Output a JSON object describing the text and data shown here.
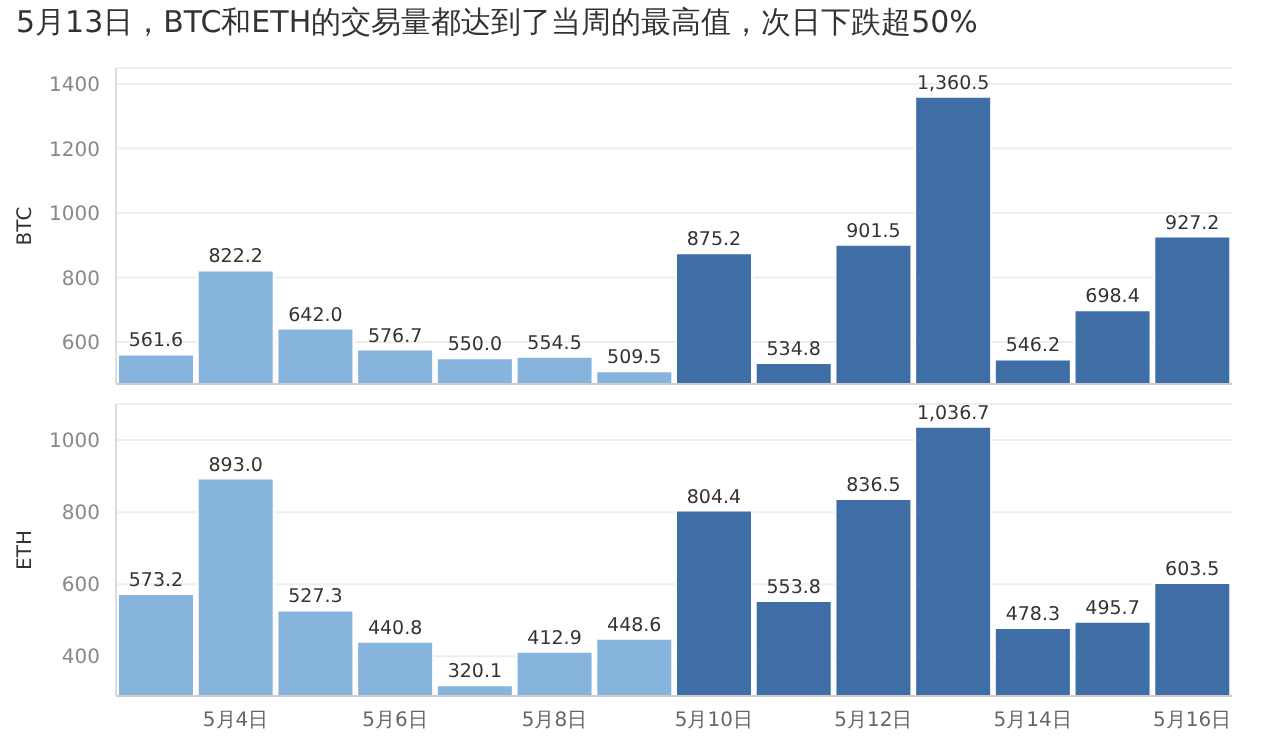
{
  "chart_data": [
    {
      "type": "bar",
      "title": "5月13日，BTC和ETH的交易量都达到了当周的最高值，次日下跌超50%",
      "ylabel": "BTC",
      "values": [
        561.6,
        822.2,
        642.0,
        576.7,
        550.0,
        554.5,
        509.5,
        875.2,
        534.8,
        901.5,
        1360.5,
        546.2,
        698.4,
        927.2
      ],
      "value_labels": [
        "561.6",
        "822.2",
        "642.0",
        "576.7",
        "550.0",
        "554.5",
        "509.5",
        "875.2",
        "534.8",
        "901.5",
        "1,360.5",
        "546.2",
        "698.4",
        "927.2"
      ],
      "colors": [
        "#86b4dc",
        "#86b4dc",
        "#86b4dc",
        "#86b4dc",
        "#86b4dc",
        "#86b4dc",
        "#86b4dc",
        "#3f6ea6",
        "#3f6ea6",
        "#3f6ea6",
        "#3f6ea6",
        "#3f6ea6",
        "#3f6ea6",
        "#3f6ea6"
      ],
      "ylim": [
        470,
        1450
      ],
      "yticks": [
        600,
        800,
        1000,
        1200,
        1400
      ],
      "grid": "y",
      "tick_labels": "y"
    },
    {
      "type": "bar",
      "ylabel": "ETH",
      "categories": [
        null,
        "5月4日",
        null,
        "5月6日",
        null,
        "5月8日",
        null,
        "5月10日",
        null,
        "5月12日",
        null,
        "5月14日",
        null,
        "5月16日"
      ],
      "values": [
        573.2,
        893.0,
        527.3,
        440.8,
        320.1,
        412.9,
        448.6,
        804.4,
        553.8,
        836.5,
        1036.7,
        478.3,
        495.7,
        603.5
      ],
      "value_labels": [
        "573.2",
        "893.0",
        "527.3",
        "440.8",
        "320.1",
        "412.9",
        "448.6",
        "804.4",
        "553.8",
        "836.5",
        "1,036.7",
        "478.3",
        "495.7",
        "603.5"
      ],
      "colors": [
        "#86b4dc",
        "#86b4dc",
        "#86b4dc",
        "#86b4dc",
        "#86b4dc",
        "#86b4dc",
        "#86b4dc",
        "#3f6ea6",
        "#3f6ea6",
        "#3f6ea6",
        "#3f6ea6",
        "#3f6ea6",
        "#3f6ea6",
        "#3f6ea6"
      ],
      "ylim": [
        290,
        1100
      ],
      "yticks": [
        400,
        600,
        800,
        1000
      ],
      "grid": "y"
    }
  ]
}
